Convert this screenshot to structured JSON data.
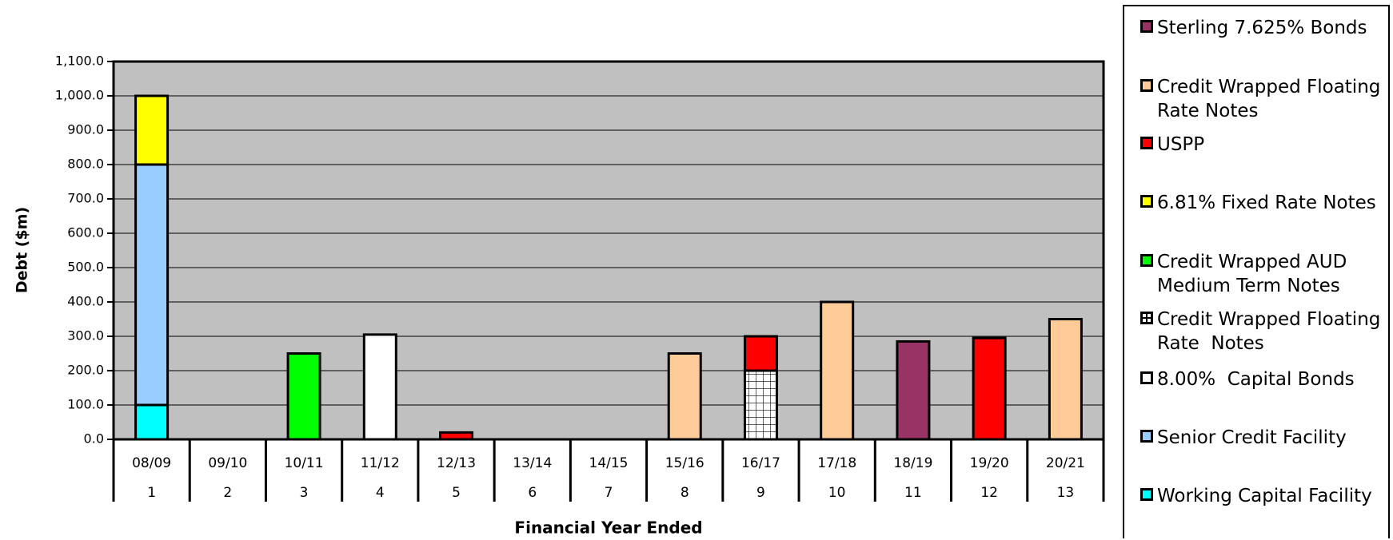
{
  "chart_data": {
    "type": "stacked_bar",
    "ylabel": "Debt ($m)",
    "xlabel": "Financial Year Ended",
    "categories": [
      "08/09",
      "09/10",
      "10/11",
      "11/12",
      "12/13",
      "13/14",
      "14/15",
      "15/16",
      "16/17",
      "17/18",
      "18/19",
      "19/20",
      "20/21"
    ],
    "category_numbers": [
      1,
      2,
      3,
      4,
      5,
      6,
      7,
      8,
      9,
      10,
      11,
      12,
      13
    ],
    "ylim": [
      0,
      1100
    ],
    "yticks": [
      {
        "value": 0,
        "label": "0.0"
      },
      {
        "value": 100,
        "label": "100.0"
      },
      {
        "value": 200,
        "label": "200.0"
      },
      {
        "value": 300,
        "label": "300.0"
      },
      {
        "value": 400,
        "label": "400.0"
      },
      {
        "value": 500,
        "label": "500.0"
      },
      {
        "value": 600,
        "label": "600.0"
      },
      {
        "value": 700,
        "label": "700.0"
      },
      {
        "value": 800,
        "label": "800.0"
      },
      {
        "value": 900,
        "label": "900.0"
      },
      {
        "value": 1000,
        "label": "1,000.0"
      },
      {
        "value": 1100,
        "label": "1,100.0"
      }
    ],
    "grid": true,
    "legend": "right",
    "series": [
      {
        "name": "Sterling 7.625% Bonds",
        "color": "#993366",
        "values": [
          null,
          null,
          null,
          null,
          null,
          null,
          null,
          null,
          null,
          null,
          285,
          null,
          null
        ]
      },
      {
        "name": "Credit Wrapped Floating Rate Notes",
        "color": "#ffcc99",
        "values": [
          null,
          null,
          null,
          null,
          null,
          null,
          null,
          250,
          null,
          400,
          null,
          null,
          350
        ]
      },
      {
        "name": "USPP",
        "color": "#ff0000",
        "values": [
          null,
          null,
          null,
          null,
          20,
          null,
          null,
          null,
          100,
          null,
          null,
          295,
          null
        ]
      },
      {
        "name": "6.81% Fixed Rate Notes",
        "color": "#ffff00",
        "values": [
          200,
          null,
          null,
          null,
          null,
          null,
          null,
          null,
          null,
          null,
          null,
          null,
          null
        ]
      },
      {
        "name": "Credit Wrapped AUD Medium Term Notes",
        "color": "#00ff00",
        "values": [
          null,
          null,
          250,
          null,
          null,
          null,
          null,
          null,
          null,
          null,
          null,
          null,
          null
        ]
      },
      {
        "name": "Credit Wrapped Floating Rate  Notes",
        "color": "#ffffff",
        "pattern": "grid",
        "values": [
          null,
          null,
          null,
          null,
          null,
          null,
          null,
          null,
          200,
          null,
          null,
          null,
          null
        ]
      },
      {
        "name": "8.00%  Capital Bonds",
        "color": "#ffffff",
        "values": [
          null,
          null,
          null,
          305,
          null,
          null,
          null,
          null,
          null,
          null,
          null,
          null,
          null
        ]
      },
      {
        "name": "Senior Credit Facility",
        "color": "#99ccff",
        "values": [
          700,
          null,
          null,
          null,
          null,
          null,
          null,
          null,
          null,
          null,
          null,
          null,
          null
        ]
      },
      {
        "name": "Working Capital Facility",
        "color": "#00ffff",
        "values": [
          100,
          null,
          null,
          null,
          null,
          null,
          null,
          null,
          null,
          null,
          null,
          null,
          null
        ]
      }
    ]
  }
}
